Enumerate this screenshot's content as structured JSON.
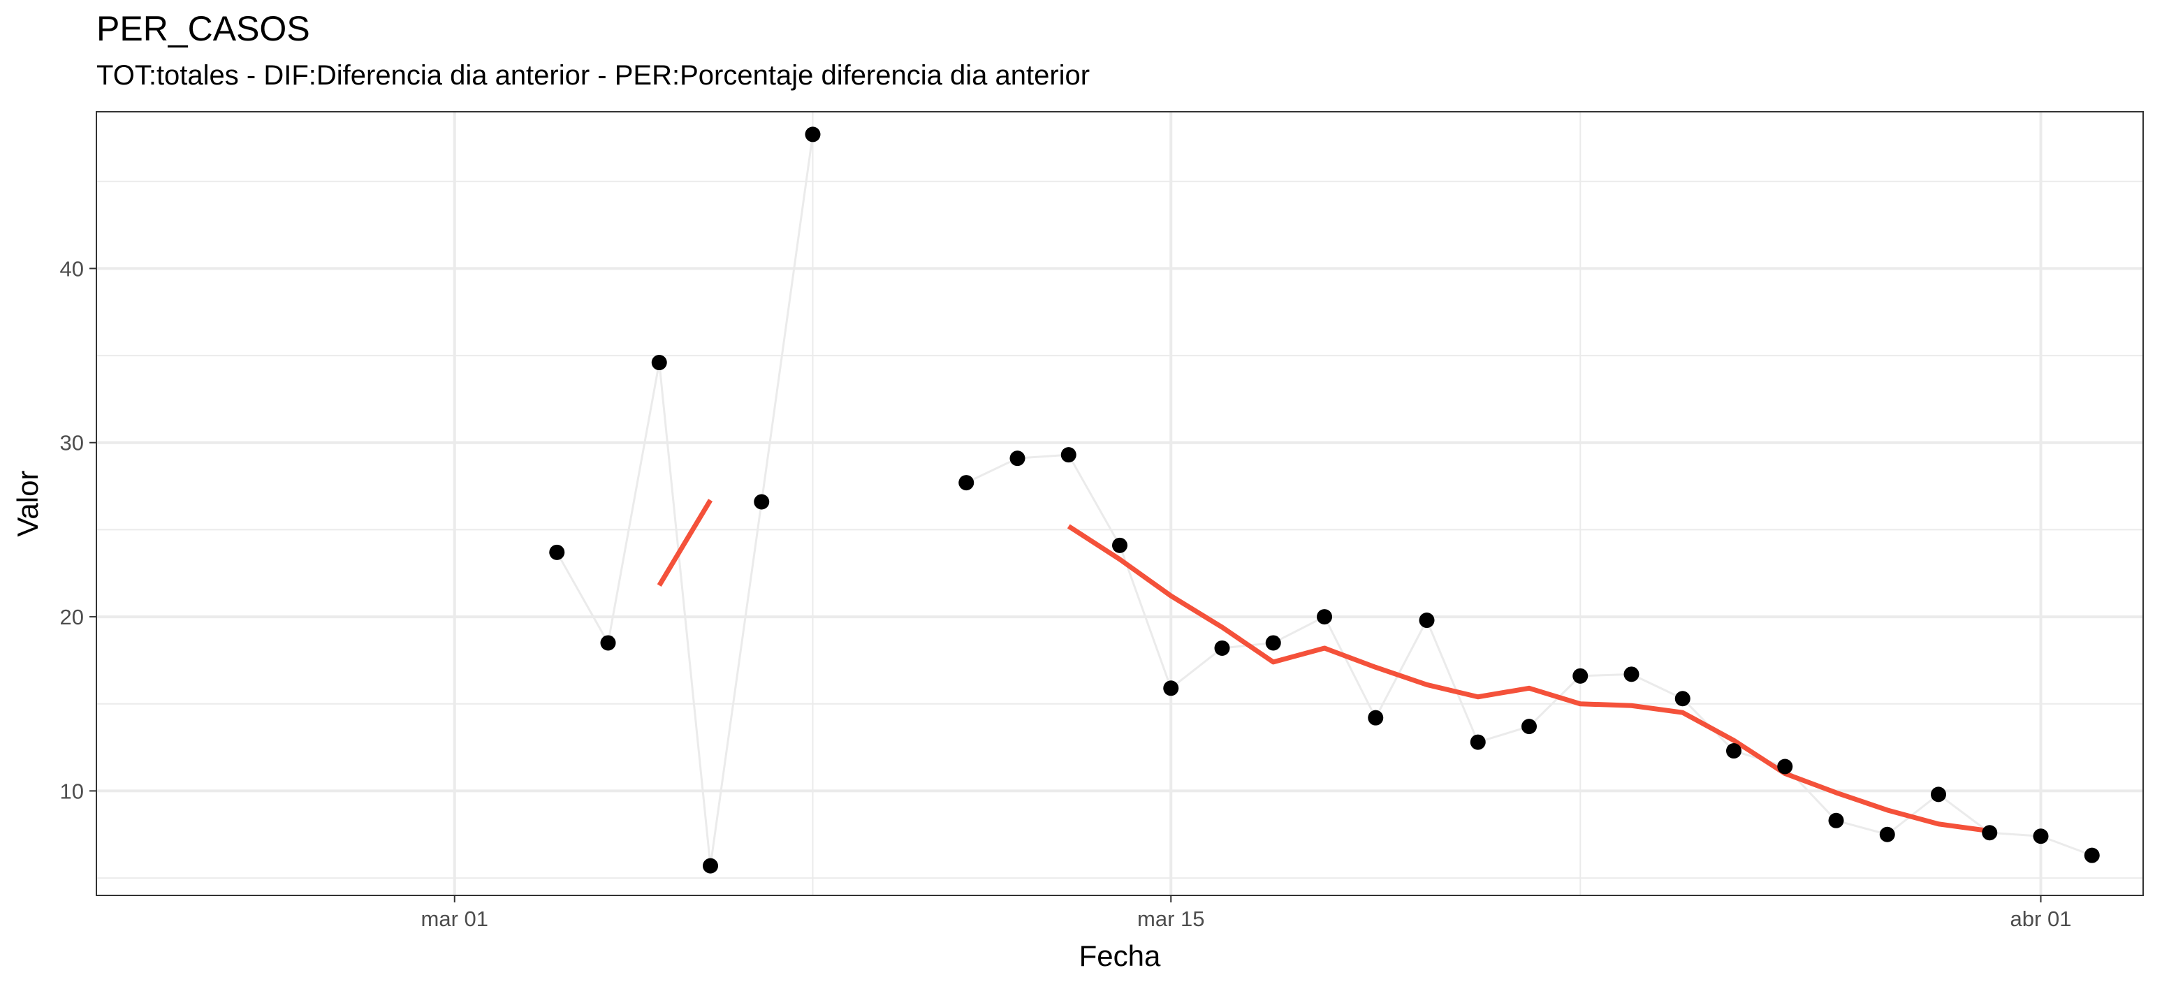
{
  "chart_data": {
    "type": "line",
    "title": "PER_CASOS",
    "subtitle": "TOT:totales - DIF:Diferencia dia anterior - PER:Porcentaje diferencia dia anterior",
    "xlabel": "Fecha",
    "ylabel": "Valor",
    "x_type": "date",
    "xlim": [
      "2020-02-23",
      "2020-04-03"
    ],
    "ylim": [
      4,
      49
    ],
    "x_ticks": [
      {
        "date": "2020-03-01",
        "label": "mar 01"
      },
      {
        "date": "2020-03-15",
        "label": "mar 15"
      },
      {
        "date": "2020-04-01",
        "label": "abr 01"
      }
    ],
    "x_minor_ticks": [
      "2020-02-23",
      "2020-03-08",
      "2020-03-23"
    ],
    "y_ticks": [
      10,
      20,
      30,
      40
    ],
    "y_minor_ticks": [
      5,
      15,
      25,
      35,
      45
    ],
    "grid": true,
    "colors": {
      "points": "#000000",
      "raw_line": "#ebebeb",
      "trend": "#f4513a",
      "grid": "#ebebeb",
      "panel_border": "#333333"
    },
    "series": [
      {
        "type": "line+points",
        "points": [
          {
            "x": "2020-03-03",
            "y": 23.7
          },
          {
            "x": "2020-03-04",
            "y": 18.5
          },
          {
            "x": "2020-03-05",
            "y": 34.6
          },
          {
            "x": "2020-03-06",
            "y": 5.7
          },
          {
            "x": "2020-03-07",
            "y": 26.6
          },
          {
            "x": "2020-03-08",
            "y": 47.7
          },
          {
            "x": "2020-03-11",
            "y": 27.7
          },
          {
            "x": "2020-03-12",
            "y": 29.1
          },
          {
            "x": "2020-03-13",
            "y": 29.3
          },
          {
            "x": "2020-03-14",
            "y": 24.1
          },
          {
            "x": "2020-03-15",
            "y": 15.9
          },
          {
            "x": "2020-03-16",
            "y": 18.2
          },
          {
            "x": "2020-03-17",
            "y": 18.5
          },
          {
            "x": "2020-03-18",
            "y": 20.0
          },
          {
            "x": "2020-03-19",
            "y": 14.2
          },
          {
            "x": "2020-03-20",
            "y": 19.8
          },
          {
            "x": "2020-03-21",
            "y": 12.8
          },
          {
            "x": "2020-03-22",
            "y": 13.7
          },
          {
            "x": "2020-03-23",
            "y": 16.6
          },
          {
            "x": "2020-03-24",
            "y": 16.7
          },
          {
            "x": "2020-03-25",
            "y": 15.3
          },
          {
            "x": "2020-03-26",
            "y": 12.3
          },
          {
            "x": "2020-03-27",
            "y": 11.4
          },
          {
            "x": "2020-03-28",
            "y": 8.3
          },
          {
            "x": "2020-03-29",
            "y": 7.5
          },
          {
            "x": "2020-03-30",
            "y": 9.8
          },
          {
            "x": "2020-03-31",
            "y": 7.6
          },
          {
            "x": "2020-04-01",
            "y": 7.4
          },
          {
            "x": "2020-04-02",
            "y": 6.3
          }
        ]
      },
      {
        "type": "trend-line",
        "segments": [
          [
            {
              "x": "2020-03-05",
              "y": 21.8
            },
            {
              "x": "2020-03-06",
              "y": 26.7
            }
          ],
          [
            {
              "x": "2020-03-13",
              "y": 25.2
            },
            {
              "x": "2020-03-14",
              "y": 23.3
            },
            {
              "x": "2020-03-15",
              "y": 21.2
            },
            {
              "x": "2020-03-16",
              "y": 19.4
            },
            {
              "x": "2020-03-17",
              "y": 17.4
            },
            {
              "x": "2020-03-18",
              "y": 18.2
            },
            {
              "x": "2020-03-19",
              "y": 17.1
            },
            {
              "x": "2020-03-20",
              "y": 16.1
            },
            {
              "x": "2020-03-21",
              "y": 15.4
            },
            {
              "x": "2020-03-22",
              "y": 15.9
            },
            {
              "x": "2020-03-23",
              "y": 15.0
            },
            {
              "x": "2020-03-24",
              "y": 14.9
            },
            {
              "x": "2020-03-25",
              "y": 14.5
            },
            {
              "x": "2020-03-26",
              "y": 12.9
            },
            {
              "x": "2020-03-27",
              "y": 11.0
            },
            {
              "x": "2020-03-28",
              "y": 9.9
            },
            {
              "x": "2020-03-29",
              "y": 8.9
            },
            {
              "x": "2020-03-30",
              "y": 8.1
            },
            {
              "x": "2020-03-31",
              "y": 7.7
            }
          ]
        ]
      }
    ]
  }
}
